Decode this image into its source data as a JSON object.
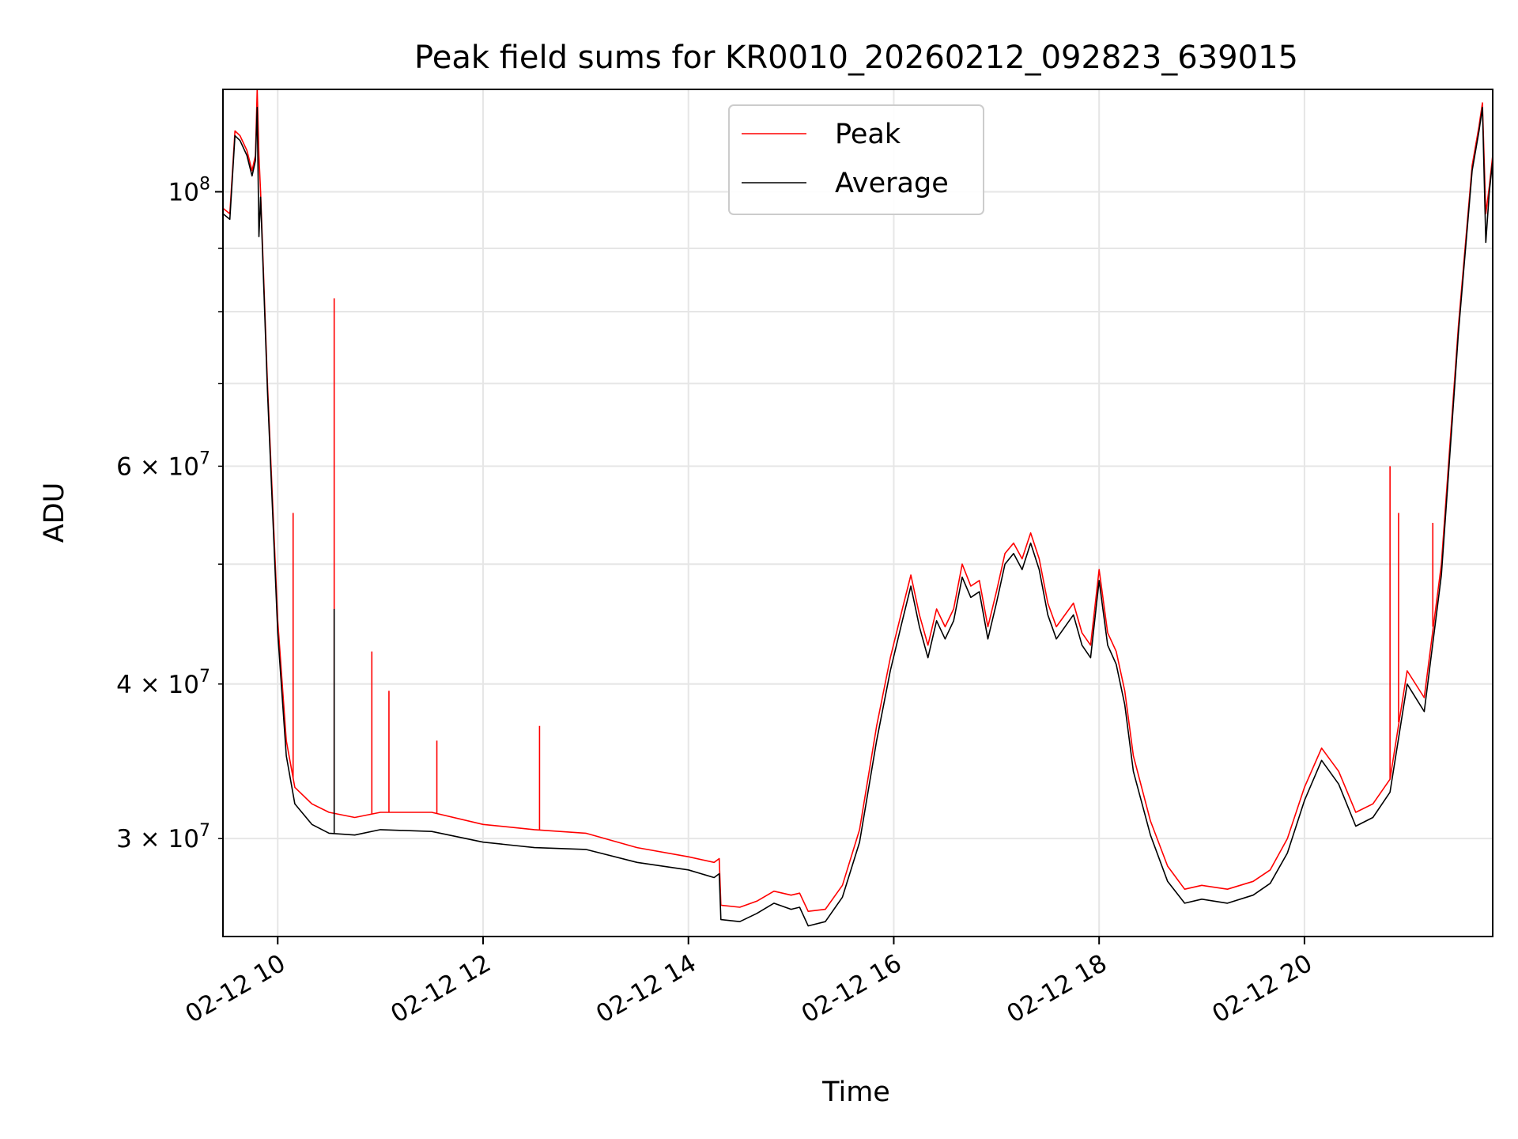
{
  "chart_data": {
    "type": "line",
    "title": "Peak field sums for KR0010_20260212_092823_639015",
    "xlabel": "Time",
    "ylabel": "ADU",
    "x_axis": {
      "scale": "time",
      "range": [
        "2026-02-12 09:28",
        "2026-02-12 21:50"
      ],
      "ticks": [
        "2026-02-12 10:00",
        "2026-02-12 12:00",
        "2026-02-12 14:00",
        "2026-02-12 16:00",
        "2026-02-12 18:00",
        "2026-02-12 20:00"
      ],
      "tick_labels": [
        "02-12 10",
        "02-12 12",
        "02-12 14",
        "02-12 16",
        "02-12 18",
        "02-12 20"
      ],
      "tick_label_rotation": "30"
    },
    "y_axis": {
      "scale": "log",
      "range": [
        25000000,
        121000000
      ],
      "major_ticks": [
        100000000
      ],
      "major_tick_labels": [
        "10^8"
      ],
      "minor_ticks": [
        30000000,
        40000000,
        50000000,
        60000000,
        70000000,
        80000000,
        90000000
      ],
      "minor_tick_labels": [
        "3 × 10^7",
        "4 × 10^7",
        "",
        "6 × 10^7",
        "",
        "",
        ""
      ]
    },
    "grid": true,
    "legend": {
      "position": "top-center"
    },
    "series": [
      {
        "name": "Peak",
        "color": "#ff0000",
        "points": [
          [
            "2026-02-12 09:28",
            97000000
          ],
          [
            "2026-02-12 09:32",
            96000000
          ],
          [
            "2026-02-12 09:35",
            112000000
          ],
          [
            "2026-02-12 09:38",
            111000000
          ],
          [
            "2026-02-12 09:42",
            108000000
          ],
          [
            "2026-02-12 09:45",
            104000000
          ],
          [
            "2026-02-12 09:47",
            107000000
          ],
          [
            "2026-02-12 09:48",
            121000000
          ],
          [
            "2026-02-12 09:49",
            107000000
          ],
          [
            "2026-02-12 09:50",
            100000000
          ],
          [
            "2026-02-12 09:54",
            70000000
          ],
          [
            "2026-02-12 10:00",
            45000000
          ],
          [
            "2026-02-12 10:05",
            36000000
          ],
          [
            "2026-02-12 10:10",
            33000000
          ],
          [
            "2026-02-12 10:20",
            32000000
          ],
          [
            "2026-02-12 10:30",
            31500000
          ],
          [
            "2026-02-12 10:45",
            31200000
          ],
          [
            "2026-02-12 11:00",
            31500000
          ],
          [
            "2026-02-12 11:30",
            31500000
          ],
          [
            "2026-02-12 12:00",
            30800000
          ],
          [
            "2026-02-12 12:30",
            30500000
          ],
          [
            "2026-02-12 13:00",
            30300000
          ],
          [
            "2026-02-12 13:30",
            29500000
          ],
          [
            "2026-02-12 14:00",
            29000000
          ],
          [
            "2026-02-12 14:15",
            28700000
          ],
          [
            "2026-02-12 14:18",
            28900000
          ],
          [
            "2026-02-12 14:19",
            26500000
          ],
          [
            "2026-02-12 14:30",
            26400000
          ],
          [
            "2026-02-12 14:40",
            26700000
          ],
          [
            "2026-02-12 14:50",
            27200000
          ],
          [
            "2026-02-12 15:00",
            27000000
          ],
          [
            "2026-02-12 15:05",
            27100000
          ],
          [
            "2026-02-12 15:10",
            26200000
          ],
          [
            "2026-02-12 15:20",
            26300000
          ],
          [
            "2026-02-12 15:30",
            27500000
          ],
          [
            "2026-02-12 15:40",
            30500000
          ],
          [
            "2026-02-12 15:50",
            37000000
          ],
          [
            "2026-02-12 15:58",
            42000000
          ],
          [
            "2026-02-12 16:05",
            46000000
          ],
          [
            "2026-02-12 16:10",
            49000000
          ],
          [
            "2026-02-12 16:15",
            45500000
          ],
          [
            "2026-02-12 16:20",
            43000000
          ],
          [
            "2026-02-12 16:25",
            46000000
          ],
          [
            "2026-02-12 16:30",
            44500000
          ],
          [
            "2026-02-12 16:35",
            46000000
          ],
          [
            "2026-02-12 16:40",
            50000000
          ],
          [
            "2026-02-12 16:45",
            48000000
          ],
          [
            "2026-02-12 16:50",
            48500000
          ],
          [
            "2026-02-12 16:55",
            44500000
          ],
          [
            "2026-02-12 17:00",
            47500000
          ],
          [
            "2026-02-12 17:05",
            51000000
          ],
          [
            "2026-02-12 17:10",
            52000000
          ],
          [
            "2026-02-12 17:15",
            50500000
          ],
          [
            "2026-02-12 17:20",
            53000000
          ],
          [
            "2026-02-12 17:25",
            50500000
          ],
          [
            "2026-02-12 17:30",
            46500000
          ],
          [
            "2026-02-12 17:35",
            44500000
          ],
          [
            "2026-02-12 17:45",
            46500000
          ],
          [
            "2026-02-12 17:50",
            44000000
          ],
          [
            "2026-02-12 17:55",
            43000000
          ],
          [
            "2026-02-12 18:00",
            49500000
          ],
          [
            "2026-02-12 18:05",
            44000000
          ],
          [
            "2026-02-12 18:10",
            42500000
          ],
          [
            "2026-02-12 18:15",
            39500000
          ],
          [
            "2026-02-12 18:20",
            35000000
          ],
          [
            "2026-02-12 18:30",
            31000000
          ],
          [
            "2026-02-12 18:40",
            28500000
          ],
          [
            "2026-02-12 18:50",
            27300000
          ],
          [
            "2026-02-12 19:00",
            27500000
          ],
          [
            "2026-02-12 19:15",
            27300000
          ],
          [
            "2026-02-12 19:30",
            27700000
          ],
          [
            "2026-02-12 19:40",
            28300000
          ],
          [
            "2026-02-12 19:50",
            30000000
          ],
          [
            "2026-02-12 20:00",
            33000000
          ],
          [
            "2026-02-12 20:10",
            35500000
          ],
          [
            "2026-02-12 20:20",
            34000000
          ],
          [
            "2026-02-12 20:30",
            31500000
          ],
          [
            "2026-02-12 20:40",
            32000000
          ],
          [
            "2026-02-12 20:50",
            33500000
          ],
          [
            "2026-02-12 21:00",
            41000000
          ],
          [
            "2026-02-12 21:10",
            39000000
          ],
          [
            "2026-02-12 21:20",
            50000000
          ],
          [
            "2026-02-12 21:30",
            78000000
          ],
          [
            "2026-02-12 21:38",
            105000000
          ],
          [
            "2026-02-12 21:42",
            113000000
          ],
          [
            "2026-02-12 21:44",
            118000000
          ],
          [
            "2026-02-12 21:46",
            96000000
          ],
          [
            "2026-02-12 21:48",
            101000000
          ],
          [
            "2026-02-12 21:50",
            107000000
          ]
        ],
        "spikes": [
          [
            "2026-02-12 10:09",
            55000000
          ],
          [
            "2026-02-12 10:33",
            82000000
          ],
          [
            "2026-02-12 10:55",
            42500000
          ],
          [
            "2026-02-12 11:05",
            39500000
          ],
          [
            "2026-02-12 11:33",
            36000000
          ],
          [
            "2026-02-12 12:33",
            37000000
          ],
          [
            "2026-02-12 20:50",
            60000000
          ],
          [
            "2026-02-12 20:55",
            55000000
          ],
          [
            "2026-02-12 21:15",
            54000000
          ]
        ]
      },
      {
        "name": "Average",
        "color": "#000000",
        "points": [
          [
            "2026-02-12 09:28",
            96000000
          ],
          [
            "2026-02-12 09:32",
            95000000
          ],
          [
            "2026-02-12 09:35",
            111000000
          ],
          [
            "2026-02-12 09:38",
            110000000
          ],
          [
            "2026-02-12 09:42",
            107000000
          ],
          [
            "2026-02-12 09:45",
            103000000
          ],
          [
            "2026-02-12 09:47",
            106000000
          ],
          [
            "2026-02-12 09:48",
            117000000
          ],
          [
            "2026-02-12 09:49",
            92000000
          ],
          [
            "2026-02-12 09:50",
            99000000
          ],
          [
            "2026-02-12 09:54",
            69000000
          ],
          [
            "2026-02-12 10:00",
            44000000
          ],
          [
            "2026-02-12 10:05",
            35000000
          ],
          [
            "2026-02-12 10:10",
            32000000
          ],
          [
            "2026-02-12 10:20",
            30800000
          ],
          [
            "2026-02-12 10:30",
            30300000
          ],
          [
            "2026-02-12 10:45",
            30200000
          ],
          [
            "2026-02-12 11:00",
            30500000
          ],
          [
            "2026-02-12 11:30",
            30400000
          ],
          [
            "2026-02-12 12:00",
            29800000
          ],
          [
            "2026-02-12 12:30",
            29500000
          ],
          [
            "2026-02-12 13:00",
            29400000
          ],
          [
            "2026-02-12 13:30",
            28700000
          ],
          [
            "2026-02-12 14:00",
            28300000
          ],
          [
            "2026-02-12 14:15",
            27900000
          ],
          [
            "2026-02-12 14:18",
            28100000
          ],
          [
            "2026-02-12 14:19",
            25800000
          ],
          [
            "2026-02-12 14:30",
            25700000
          ],
          [
            "2026-02-12 14:40",
            26100000
          ],
          [
            "2026-02-12 14:50",
            26600000
          ],
          [
            "2026-02-12 15:00",
            26300000
          ],
          [
            "2026-02-12 15:05",
            26400000
          ],
          [
            "2026-02-12 15:10",
            25500000
          ],
          [
            "2026-02-12 15:20",
            25700000
          ],
          [
            "2026-02-12 15:30",
            26900000
          ],
          [
            "2026-02-12 15:40",
            29800000
          ],
          [
            "2026-02-12 15:50",
            36000000
          ],
          [
            "2026-02-12 15:58",
            41000000
          ],
          [
            "2026-02-12 16:05",
            45000000
          ],
          [
            "2026-02-12 16:10",
            48000000
          ],
          [
            "2026-02-12 16:15",
            44500000
          ],
          [
            "2026-02-12 16:20",
            42000000
          ],
          [
            "2026-02-12 16:25",
            45000000
          ],
          [
            "2026-02-12 16:30",
            43500000
          ],
          [
            "2026-02-12 16:35",
            45000000
          ],
          [
            "2026-02-12 16:40",
            48800000
          ],
          [
            "2026-02-12 16:45",
            47000000
          ],
          [
            "2026-02-12 16:50",
            47500000
          ],
          [
            "2026-02-12 16:55",
            43500000
          ],
          [
            "2026-02-12 17:00",
            46500000
          ],
          [
            "2026-02-12 17:05",
            50000000
          ],
          [
            "2026-02-12 17:10",
            51000000
          ],
          [
            "2026-02-12 17:15",
            49500000
          ],
          [
            "2026-02-12 17:20",
            52000000
          ],
          [
            "2026-02-12 17:25",
            49500000
          ],
          [
            "2026-02-12 17:30",
            45500000
          ],
          [
            "2026-02-12 17:35",
            43500000
          ],
          [
            "2026-02-12 17:45",
            45500000
          ],
          [
            "2026-02-12 17:50",
            43000000
          ],
          [
            "2026-02-12 17:55",
            42000000
          ],
          [
            "2026-02-12 18:00",
            48500000
          ],
          [
            "2026-02-12 18:05",
            43000000
          ],
          [
            "2026-02-12 18:10",
            41500000
          ],
          [
            "2026-02-12 18:15",
            38500000
          ],
          [
            "2026-02-12 18:20",
            34000000
          ],
          [
            "2026-02-12 18:30",
            30200000
          ],
          [
            "2026-02-12 18:40",
            27700000
          ],
          [
            "2026-02-12 18:50",
            26600000
          ],
          [
            "2026-02-12 19:00",
            26800000
          ],
          [
            "2026-02-12 19:15",
            26600000
          ],
          [
            "2026-02-12 19:30",
            27000000
          ],
          [
            "2026-02-12 19:40",
            27600000
          ],
          [
            "2026-02-12 19:50",
            29200000
          ],
          [
            "2026-02-12 20:00",
            32200000
          ],
          [
            "2026-02-12 20:10",
            34700000
          ],
          [
            "2026-02-12 20:20",
            33200000
          ],
          [
            "2026-02-12 20:30",
            30700000
          ],
          [
            "2026-02-12 20:40",
            31200000
          ],
          [
            "2026-02-12 20:50",
            32700000
          ],
          [
            "2026-02-12 21:00",
            40000000
          ],
          [
            "2026-02-12 21:10",
            38000000
          ],
          [
            "2026-02-12 21:20",
            49000000
          ],
          [
            "2026-02-12 21:30",
            77000000
          ],
          [
            "2026-02-12 21:38",
            104000000
          ],
          [
            "2026-02-12 21:42",
            112000000
          ],
          [
            "2026-02-12 21:44",
            117000000
          ],
          [
            "2026-02-12 21:46",
            91000000
          ],
          [
            "2026-02-12 21:48",
            100000000
          ],
          [
            "2026-02-12 21:50",
            106000000
          ]
        ],
        "spikes": [
          [
            "2026-02-12 10:33",
            46000000
          ]
        ]
      }
    ]
  }
}
